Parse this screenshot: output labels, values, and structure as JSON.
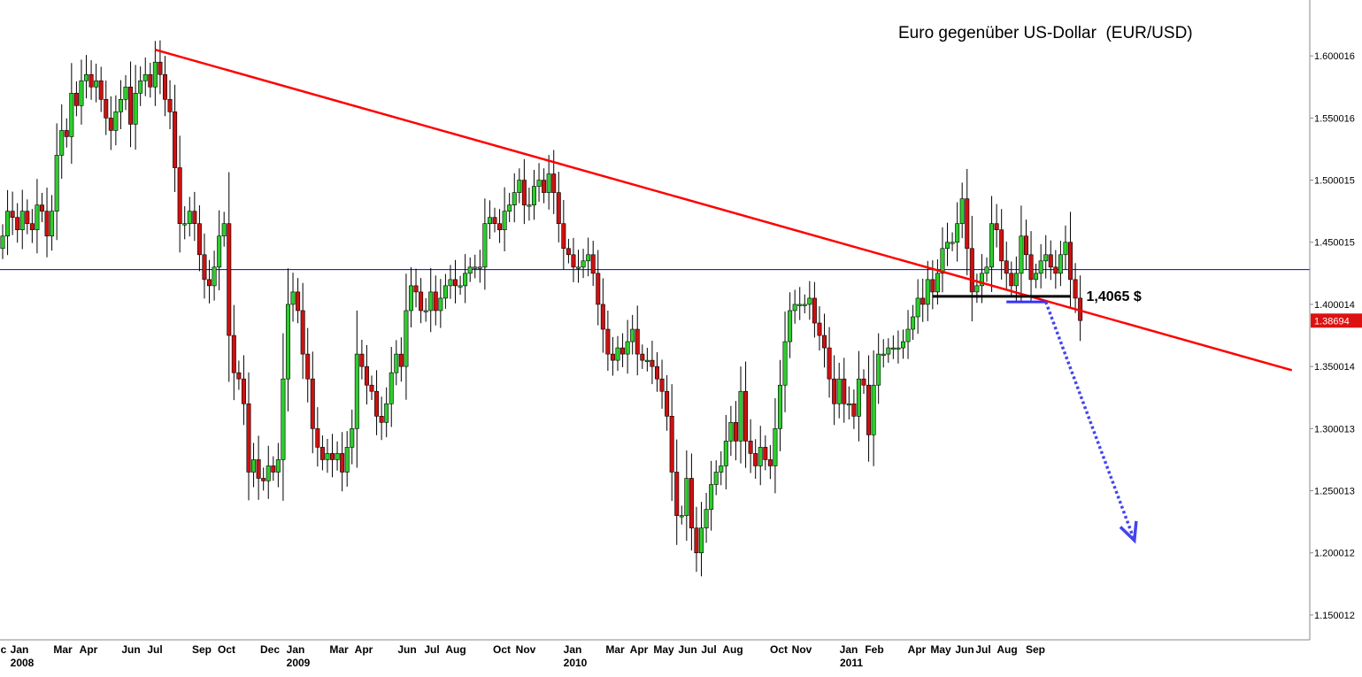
{
  "chart_data": {
    "type": "candlestick",
    "title": "Euro gegenüber US-Dollar  (EUR/USD)",
    "timeframe": "weekly",
    "ylim": [
      1.13,
      1.645
    ],
    "y_ticks": [
      "1.600016",
      "1.550016",
      "1.500015",
      "1.450015",
      "1.400014",
      "1.350014",
      "1.300013",
      "1.250013",
      "1.200012",
      "1.150012"
    ],
    "current_price_label": "1.38694",
    "x_ticks": [
      {
        "label": "c",
        "year": ""
      },
      {
        "label": "Jan",
        "year": "2008"
      },
      {
        "label": "Mar",
        "year": ""
      },
      {
        "label": "Apr",
        "year": ""
      },
      {
        "label": "Jun",
        "year": ""
      },
      {
        "label": "Jul",
        "year": ""
      },
      {
        "label": "Sep",
        "year": ""
      },
      {
        "label": "Oct",
        "year": ""
      },
      {
        "label": "Dec",
        "year": ""
      },
      {
        "label": "Jan",
        "year": "2009"
      },
      {
        "label": "Mar",
        "year": ""
      },
      {
        "label": "Apr",
        "year": ""
      },
      {
        "label": "Jun",
        "year": ""
      },
      {
        "label": "Jul",
        "year": ""
      },
      {
        "label": "Aug",
        "year": ""
      },
      {
        "label": "Oct",
        "year": ""
      },
      {
        "label": "Nov",
        "year": ""
      },
      {
        "label": "Jan",
        "year": "2010"
      },
      {
        "label": "Mar",
        "year": ""
      },
      {
        "label": "Apr",
        "year": ""
      },
      {
        "label": "May",
        "year": ""
      },
      {
        "label": "Jun",
        "year": ""
      },
      {
        "label": "Jul",
        "year": ""
      },
      {
        "label": "Aug",
        "year": ""
      },
      {
        "label": "Oct",
        "year": ""
      },
      {
        "label": "Nov",
        "year": ""
      },
      {
        "label": "Jan",
        "year": "2011"
      },
      {
        "label": "Feb",
        "year": ""
      },
      {
        "label": "Apr",
        "year": ""
      },
      {
        "label": "May",
        "year": ""
      },
      {
        "label": "Jun",
        "year": ""
      },
      {
        "label": "Jul",
        "year": ""
      },
      {
        "label": "Aug",
        "year": ""
      },
      {
        "label": "Sep",
        "year": ""
      }
    ],
    "close_path": [
      1.455,
      1.475,
      1.47,
      1.46,
      1.475,
      1.465,
      1.46,
      1.48,
      1.475,
      1.455,
      1.475,
      1.52,
      1.54,
      1.535,
      1.57,
      1.56,
      1.58,
      1.585,
      1.575,
      1.58,
      1.565,
      1.55,
      1.54,
      1.555,
      1.565,
      1.575,
      1.545,
      1.57,
      1.58,
      1.585,
      1.575,
      1.595,
      1.585,
      1.565,
      1.555,
      1.51,
      1.465,
      1.465,
      1.475,
      1.465,
      1.44,
      1.42,
      1.415,
      1.43,
      1.455,
      1.465,
      1.375,
      1.345,
      1.34,
      1.32,
      1.265,
      1.275,
      1.26,
      1.258,
      1.27,
      1.265,
      1.275,
      1.34,
      1.4,
      1.41,
      1.395,
      1.36,
      1.34,
      1.3,
      1.285,
      1.275,
      1.28,
      1.275,
      1.28,
      1.265,
      1.285,
      1.3,
      1.36,
      1.35,
      1.335,
      1.33,
      1.31,
      1.305,
      1.32,
      1.345,
      1.36,
      1.35,
      1.395,
      1.415,
      1.41,
      1.395,
      1.395,
      1.41,
      1.395,
      1.405,
      1.415,
      1.42,
      1.415,
      1.415,
      1.425,
      1.43,
      1.43,
      1.43,
      1.465,
      1.47,
      1.465,
      1.46,
      1.475,
      1.48,
      1.49,
      1.5,
      1.48,
      1.48,
      1.495,
      1.5,
      1.49,
      1.505,
      1.49,
      1.465,
      1.445,
      1.44,
      1.43,
      1.43,
      1.435,
      1.44,
      1.425,
      1.4,
      1.38,
      1.36,
      1.355,
      1.365,
      1.36,
      1.37,
      1.38,
      1.36,
      1.355,
      1.355,
      1.35,
      1.34,
      1.33,
      1.31,
      1.265,
      1.23,
      1.23,
      1.26,
      1.22,
      1.2,
      1.22,
      1.235,
      1.255,
      1.265,
      1.27,
      1.29,
      1.305,
      1.29,
      1.33,
      1.29,
      1.28,
      1.27,
      1.285,
      1.275,
      1.27,
      1.3,
      1.335,
      1.37,
      1.395,
      1.4,
      1.4,
      1.4,
      1.405,
      1.385,
      1.375,
      1.365,
      1.34,
      1.32,
      1.34,
      1.32,
      1.32,
      1.31,
      1.34,
      1.335,
      1.295,
      1.335,
      1.36,
      1.36,
      1.365,
      1.365,
      1.365,
      1.37,
      1.38,
      1.39,
      1.405,
      1.4,
      1.42,
      1.41,
      1.425,
      1.445,
      1.45,
      1.45,
      1.465,
      1.485,
      1.445,
      1.41,
      1.415,
      1.425,
      1.43,
      1.465,
      1.46,
      1.435,
      1.425,
      1.415,
      1.425,
      1.455,
      1.44,
      1.42,
      1.425,
      1.435,
      1.44,
      1.43,
      1.425,
      1.44,
      1.45,
      1.42,
      1.405,
      1.387
    ],
    "annotations": {
      "downtrend_line": {
        "from": [
          31,
          1.605
        ],
        "to": [
          262,
          1.347
        ],
        "color": "#ff0000"
      },
      "support_line": {
        "from": [
          189,
          1.4065
        ],
        "to": [
          217,
          1.4065
        ],
        "color": "#000000"
      },
      "support_label": "1,4065 $",
      "horizontal_level": {
        "value": 1.428,
        "color": "#0000cc"
      },
      "retest_mark": {
        "from": [
          204,
          1.402
        ],
        "to": [
          212,
          1.402
        ],
        "color": "#3333ff"
      },
      "projection_arrow": {
        "from": [
          212,
          1.402
        ],
        "to": [
          230,
          1.21
        ],
        "color": "#4444ee"
      }
    },
    "colors": {
      "up": "#2ecc2e",
      "down": "#cc1111",
      "outline": "#000000",
      "grid_axis": "#888888"
    },
    "grid": false
  }
}
